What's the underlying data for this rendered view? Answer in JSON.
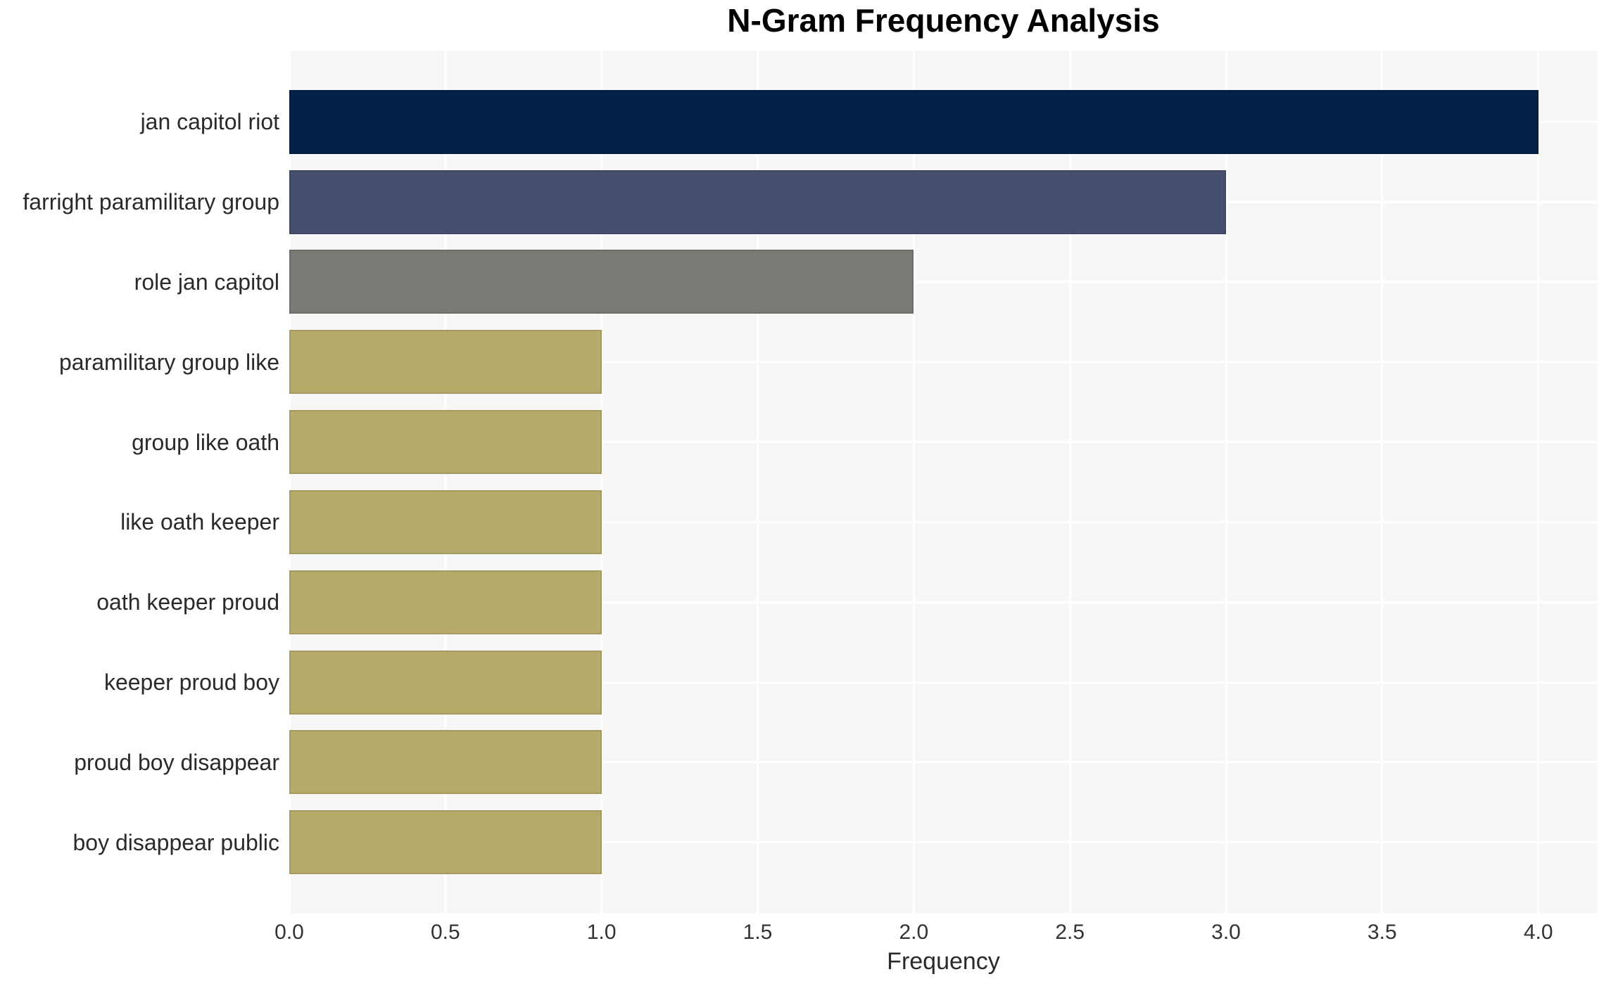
{
  "chart_data": {
    "type": "bar",
    "orientation": "horizontal",
    "title": "N-Gram Frequency Analysis",
    "xlabel": "Frequency",
    "ylabel": "",
    "categories": [
      "jan capitol riot",
      "farright paramilitary group",
      "role jan capitol",
      "paramilitary group like",
      "group like oath",
      "like oath keeper",
      "oath keeper proud",
      "keeper proud boy",
      "proud boy disappear",
      "boy disappear public"
    ],
    "values": [
      4,
      3,
      2,
      1,
      1,
      1,
      1,
      1,
      1,
      1
    ],
    "bar_colors": [
      "#022249",
      "#46506e",
      "#7a7973",
      "#b7ab6c",
      "#b7ab6c",
      "#b7ab6c",
      "#b7ab6c",
      "#b7ab6c",
      "#b7ab6c",
      "#b7ab6c"
    ],
    "xlim": [
      0,
      4.19
    ],
    "xtick_labels": [
      "0.0",
      "0.5",
      "1.0",
      "1.5",
      "2.0",
      "2.5",
      "3.0",
      "3.5",
      "4.0"
    ],
    "grid": true,
    "grid_color": "#ffffff",
    "plot_bg": "#f7f7f7",
    "figure_bg": "#ffffff",
    "legend_position": "none"
  }
}
